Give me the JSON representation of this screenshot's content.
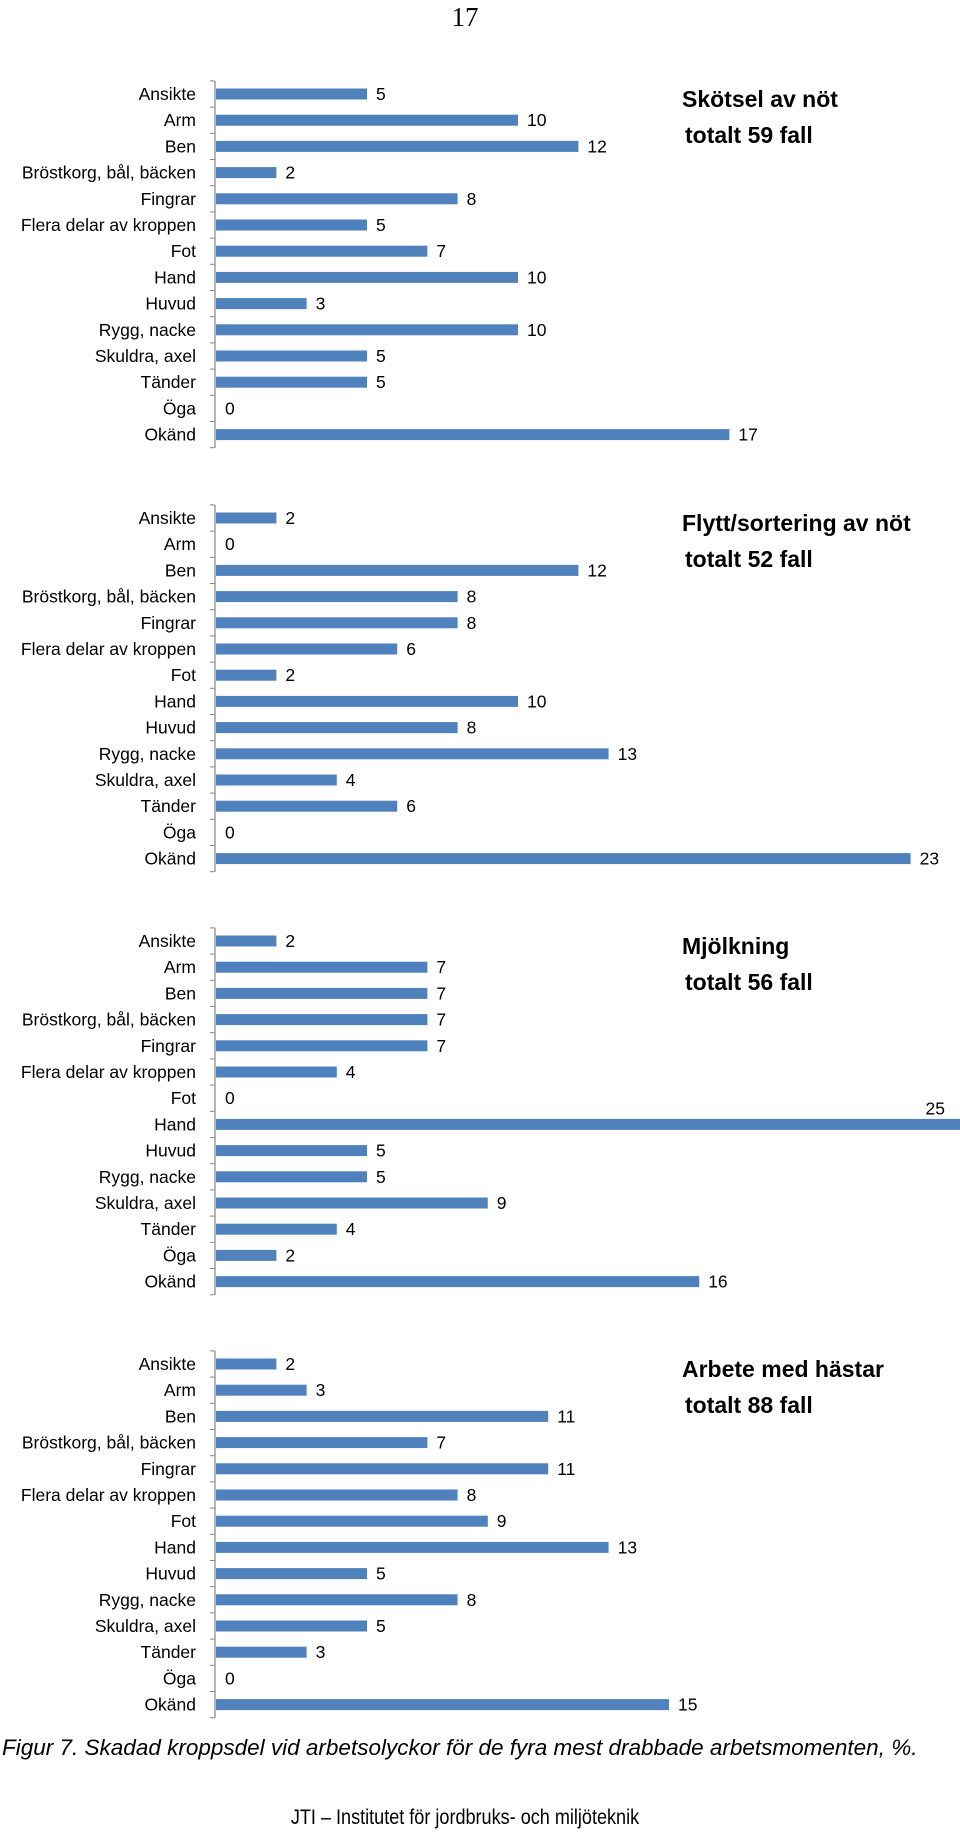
{
  "page_number": "17",
  "caption": "Figur 7. Skadad kroppsdel vid arbetsolyckor för de fyra mest drabbade arbetsmomenten, %.",
  "footer": "JTI – Institutet för jordbruks- och miljöteknik",
  "colors": {
    "bar": "#4f81bd",
    "axis": "#868686"
  },
  "chart_data": [
    {
      "type": "bar",
      "orientation": "horizontal",
      "title": [
        "Skötsel av nöt",
        "totalt 59 fall"
      ],
      "categories": [
        "Ansikte",
        "Arm",
        "Ben",
        "Bröstkorg, bål, bäcken",
        "Fingrar",
        "Flera delar av kroppen",
        "Fot",
        "Hand",
        "Huvud",
        "Rygg, nacke",
        "Skuldra, axel",
        "Tänder",
        "Öga",
        "Okänd"
      ],
      "values": [
        5,
        10,
        12,
        2,
        8,
        5,
        7,
        10,
        3,
        10,
        5,
        5,
        0,
        17
      ],
      "xlim": [
        0,
        25
      ],
      "grid": false,
      "data_labels": true
    },
    {
      "type": "bar",
      "orientation": "horizontal",
      "title": [
        "Flytt/sortering av nöt",
        "totalt 52 fall"
      ],
      "categories": [
        "Ansikte",
        "Arm",
        "Ben",
        "Bröstkorg, bål, bäcken",
        "Fingrar",
        "Flera delar av kroppen",
        "Fot",
        "Hand",
        "Huvud",
        "Rygg, nacke",
        "Skuldra, axel",
        "Tänder",
        "Öga",
        "Okänd"
      ],
      "values": [
        2,
        0,
        12,
        8,
        8,
        6,
        2,
        10,
        8,
        13,
        4,
        6,
        0,
        23
      ],
      "xlim": [
        0,
        25
      ],
      "grid": false,
      "data_labels": true
    },
    {
      "type": "bar",
      "orientation": "horizontal",
      "title": [
        "Mjölkning",
        "totalt 56 fall"
      ],
      "categories": [
        "Ansikte",
        "Arm",
        "Ben",
        "Bröstkorg, bål, bäcken",
        "Fingrar",
        "Flera delar av kroppen",
        "Fot",
        "Hand",
        "Huvud",
        "Rygg, nacke",
        "Skuldra, axel",
        "Tänder",
        "Öga",
        "Okänd"
      ],
      "values": [
        2,
        7,
        7,
        7,
        7,
        4,
        0,
        25,
        5,
        5,
        9,
        4,
        2,
        16
      ],
      "xlim": [
        0,
        25
      ],
      "grid": false,
      "data_labels": true
    },
    {
      "type": "bar",
      "orientation": "horizontal",
      "title": [
        "Arbete med hästar",
        "totalt 88 fall"
      ],
      "categories": [
        "Ansikte",
        "Arm",
        "Ben",
        "Bröstkorg, bål, bäcken",
        "Fingrar",
        "Flera delar av kroppen",
        "Fot",
        "Hand",
        "Huvud",
        "Rygg, nacke",
        "Skuldra, axel",
        "Tänder",
        "Öga",
        "Okänd"
      ],
      "values": [
        2,
        3,
        11,
        7,
        11,
        8,
        9,
        13,
        5,
        8,
        5,
        3,
        0,
        15
      ],
      "xlim": [
        0,
        25
      ],
      "grid": false,
      "data_labels": true
    }
  ]
}
